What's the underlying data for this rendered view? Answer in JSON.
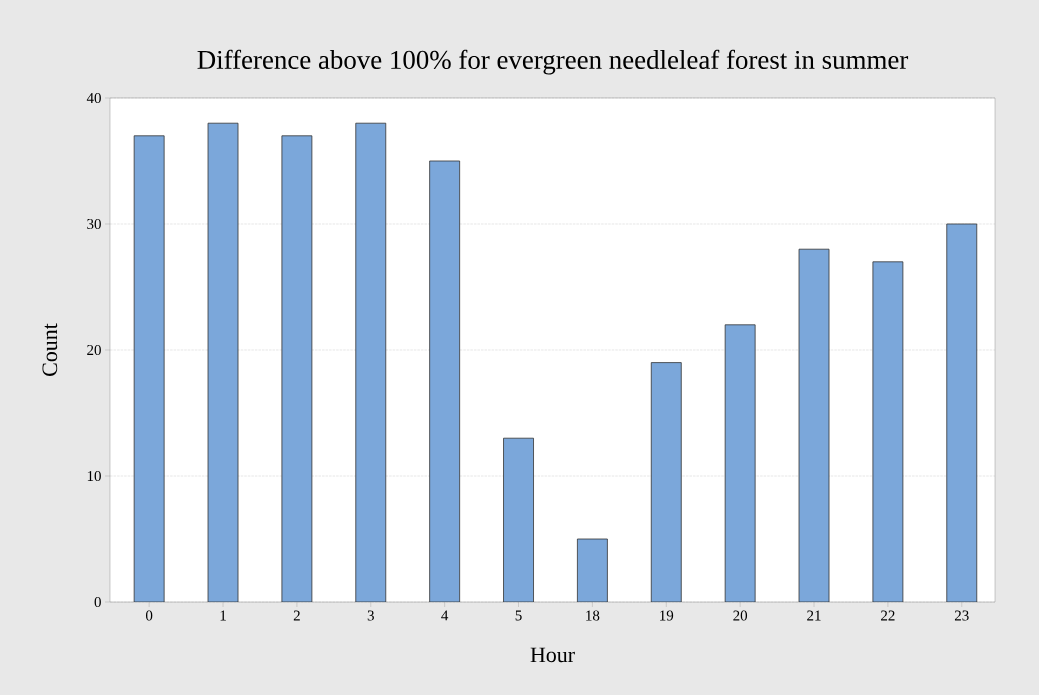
{
  "chart_data": {
    "type": "bar",
    "title": "Difference above 100% for evergreen needleleaf forest in summer",
    "xlabel": "Hour",
    "ylabel": "Count",
    "categories": [
      "0",
      "1",
      "2",
      "3",
      "4",
      "5",
      "18",
      "19",
      "20",
      "21",
      "22",
      "23"
    ],
    "values": [
      37,
      38,
      37,
      38,
      35,
      13,
      5,
      19,
      22,
      28,
      27,
      30
    ],
    "color": "#7ba7da",
    "ylim": [
      0,
      40
    ],
    "yticks": [
      0,
      10,
      20,
      30,
      40
    ],
    "grid": "y"
  }
}
